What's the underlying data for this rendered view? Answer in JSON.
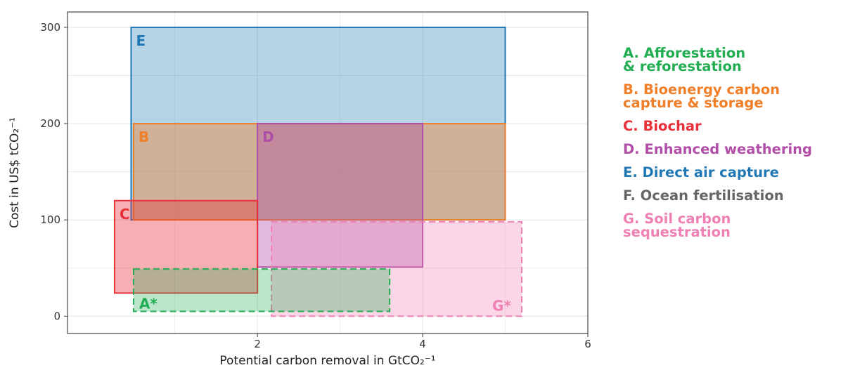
{
  "chart_data": {
    "type": "range-boxes",
    "xlabel": "Potential carbon removal in GtCO₂⁻¹",
    "ylabel": "Cost in US$ tCO₂⁻¹",
    "xlim": [
      -0.3,
      6
    ],
    "ylim": [
      -18,
      316
    ],
    "xticks": [
      2,
      4,
      6
    ],
    "yticks": [
      0,
      100,
      200,
      300
    ],
    "grid": true,
    "legend_position": "right",
    "series": [
      {
        "id": "E",
        "label": "E",
        "legend": "E. Direct air capture",
        "color": "#1f78b4",
        "x": [
          0.47,
          5.0
        ],
        "y": [
          100,
          300
        ],
        "dashed": false,
        "fill_opacity": 0.32
      },
      {
        "id": "B",
        "label": "B",
        "legend": "B. Bioenergy carbon\n  capture & storage",
        "color": "#f07f2a",
        "x": [
          0.5,
          5.0
        ],
        "y": [
          100,
          200
        ],
        "dashed": false,
        "fill_opacity": 0.42
      },
      {
        "id": "D",
        "label": "D",
        "legend": "D. Enhanced weathering",
        "color": "#b04da6",
        "x": [
          2.0,
          4.0
        ],
        "y": [
          51,
          200
        ],
        "dashed": false,
        "fill_opacity": 0.38
      },
      {
        "id": "C",
        "label": "C",
        "legend": "C. Biochar",
        "color": "#e8303a",
        "x": [
          0.27,
          2.0
        ],
        "y": [
          24,
          120
        ],
        "dashed": false,
        "fill_opacity": 0.38
      },
      {
        "id": "G",
        "label": "G*",
        "legend": "G. Soil carbon\nsequestration",
        "color": "#ef80b3",
        "x": [
          2.17,
          5.2
        ],
        "y": [
          0,
          98
        ],
        "dashed": true,
        "fill_opacity": 0.32
      },
      {
        "id": "A",
        "label": "A*",
        "legend": "A. Afforestation\n & reforestation",
        "color": "#22ad52",
        "x": [
          0.5,
          3.6
        ],
        "y": [
          5,
          49
        ],
        "dashed": true,
        "fill_opacity": 0.3
      }
    ],
    "legend_entries": [
      {
        "text": "A. Afforestation\n & reforestation",
        "color": "#22ad52"
      },
      {
        "text": "B. Bioenergy carbon\n  capture & storage",
        "color": "#f07f2a"
      },
      {
        "text": "C. Biochar",
        "color": "#e8303a"
      },
      {
        "text": "D. Enhanced weathering",
        "color": "#b04da6"
      },
      {
        "text": "E. Direct air capture",
        "color": "#1f78b4"
      },
      {
        "text": "F. Ocean fertilisation",
        "color": "#666666"
      },
      {
        "text": "G. Soil carbon\nsequestration",
        "color": "#ef80b3"
      }
    ]
  }
}
